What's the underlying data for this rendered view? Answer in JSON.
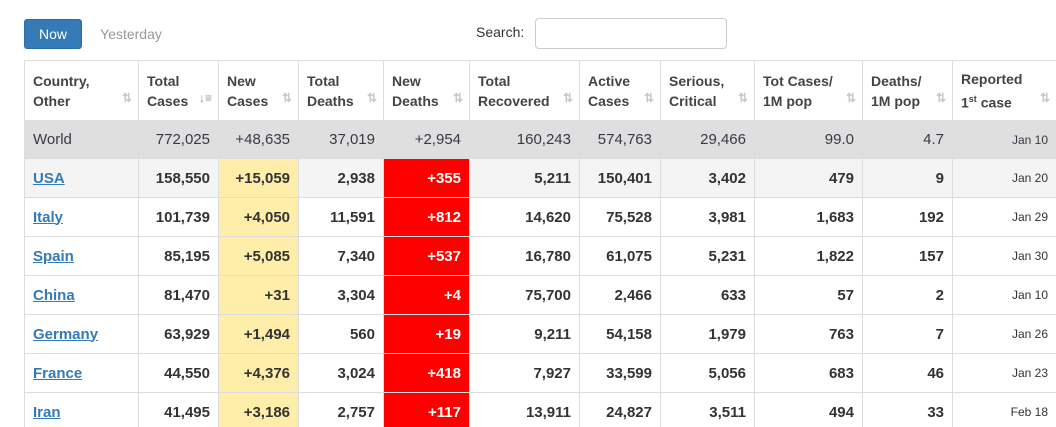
{
  "toolbar": {
    "now_label": "Now",
    "yesterday_label": "Yesterday",
    "search_label": "Search:",
    "search_value": ""
  },
  "columns": [
    {
      "line1": "Country,",
      "line2": "Other"
    },
    {
      "line1": "Total",
      "line2": "Cases"
    },
    {
      "line1": "New",
      "line2": "Cases"
    },
    {
      "line1": "Total",
      "line2": "Deaths"
    },
    {
      "line1": "New",
      "line2": "Deaths"
    },
    {
      "line1": "Total",
      "line2": "Recovered"
    },
    {
      "line1": "Active",
      "line2": "Cases"
    },
    {
      "line1": "Serious,",
      "line2": "Critical"
    },
    {
      "line1": "Tot Cases/",
      "line2": "1M pop"
    },
    {
      "line1": "Deaths/",
      "line2": "1M pop"
    },
    {
      "line1": "Reported",
      "line2a": "1",
      "line2sup": "st",
      "line2b": " case"
    }
  ],
  "colors": {
    "accent": "#337ab7",
    "new_cases_bg": "#ffeeaa",
    "new_deaths_bg": "#ff0000",
    "world_bg": "#dfdfdf"
  },
  "rows": [
    {
      "country": "World",
      "total_cases": "772,025",
      "new_cases": "+48,635",
      "total_deaths": "37,019",
      "new_deaths": "+2,954",
      "total_recovered": "160,243",
      "active_cases": "574,763",
      "serious": "29,466",
      "cases_per_m": "99.0",
      "deaths_per_m": "4.7",
      "reported": "Jan 10"
    },
    {
      "country": "USA",
      "total_cases": "158,550",
      "new_cases": "+15,059",
      "total_deaths": "2,938",
      "new_deaths": "+355",
      "total_recovered": "5,211",
      "active_cases": "150,401",
      "serious": "3,402",
      "cases_per_m": "479",
      "deaths_per_m": "9",
      "reported": "Jan 20"
    },
    {
      "country": "Italy",
      "total_cases": "101,739",
      "new_cases": "+4,050",
      "total_deaths": "11,591",
      "new_deaths": "+812",
      "total_recovered": "14,620",
      "active_cases": "75,528",
      "serious": "3,981",
      "cases_per_m": "1,683",
      "deaths_per_m": "192",
      "reported": "Jan 29"
    },
    {
      "country": "Spain",
      "total_cases": "85,195",
      "new_cases": "+5,085",
      "total_deaths": "7,340",
      "new_deaths": "+537",
      "total_recovered": "16,780",
      "active_cases": "61,075",
      "serious": "5,231",
      "cases_per_m": "1,822",
      "deaths_per_m": "157",
      "reported": "Jan 30"
    },
    {
      "country": "China",
      "total_cases": "81,470",
      "new_cases": "+31",
      "total_deaths": "3,304",
      "new_deaths": "+4",
      "total_recovered": "75,700",
      "active_cases": "2,466",
      "serious": "633",
      "cases_per_m": "57",
      "deaths_per_m": "2",
      "reported": "Jan 10"
    },
    {
      "country": "Germany",
      "total_cases": "63,929",
      "new_cases": "+1,494",
      "total_deaths": "560",
      "new_deaths": "+19",
      "total_recovered": "9,211",
      "active_cases": "54,158",
      "serious": "1,979",
      "cases_per_m": "763",
      "deaths_per_m": "7",
      "reported": "Jan 26"
    },
    {
      "country": "France",
      "total_cases": "44,550",
      "new_cases": "+4,376",
      "total_deaths": "3,024",
      "new_deaths": "+418",
      "total_recovered": "7,927",
      "active_cases": "33,599",
      "serious": "5,056",
      "cases_per_m": "683",
      "deaths_per_m": "46",
      "reported": "Jan 23"
    },
    {
      "country": "Iran",
      "total_cases": "41,495",
      "new_cases": "+3,186",
      "total_deaths": "2,757",
      "new_deaths": "+117",
      "total_recovered": "13,911",
      "active_cases": "24,827",
      "serious": "3,511",
      "cases_per_m": "494",
      "deaths_per_m": "33",
      "reported": "Feb 18"
    }
  ]
}
